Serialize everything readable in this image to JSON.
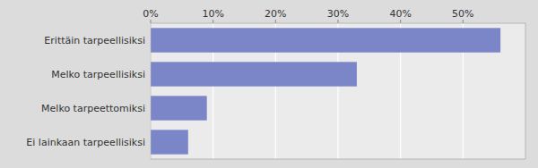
{
  "chart_data": {
    "type": "bar",
    "orientation": "horizontal",
    "categories": [
      "Ei lainkaan tarpeellisiksi",
      "Melko tarpeettomiksi",
      "Melko tarpeellisiksi",
      "Erittäin tarpeellisiksi"
    ],
    "values": [
      6,
      9,
      33,
      56
    ],
    "color": "#7b86c8",
    "xlim": [
      0,
      60
    ],
    "xticks": [
      {
        "value": 0,
        "label": "0%"
      },
      {
        "value": 10,
        "label": "10%"
      },
      {
        "value": 20,
        "label": "20%"
      },
      {
        "value": 30,
        "label": "30%"
      },
      {
        "value": 40,
        "label": "40%"
      },
      {
        "value": 50,
        "label": "50%"
      }
    ],
    "grid": true
  }
}
